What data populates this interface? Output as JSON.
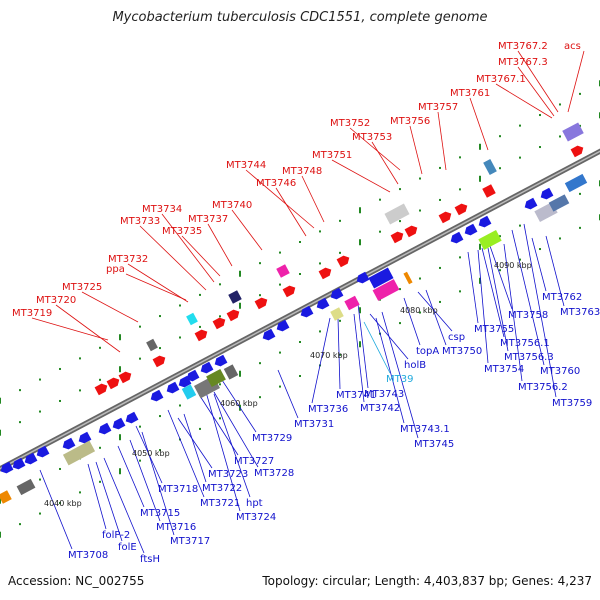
{
  "title": "Mycobacterium tuberculosis CDC1551, complete genome",
  "footer": {
    "accession": "Accession: NC_002755",
    "summary": "Topology: circular; Length: 4,403,837 bp; Genes: 4,237"
  },
  "colors": {
    "backbone": "#777777",
    "forward_label": "#dd1111",
    "reverse_label": "#1111cc",
    "highlight_label": "#22aadd",
    "forward_gene": "#ee1111",
    "reverse_gene": "#1a1ae0",
    "tick": "#228822"
  },
  "scale_labels": [
    "4040 kbp",
    "4050 kbp",
    "4060 kbp",
    "4070 kbp",
    "4080 kbp",
    "4090 kbp"
  ],
  "forward_genes": [
    "MT3719",
    "MT3720",
    "MT3725",
    "ppa",
    "MT3732",
    "MT3733",
    "MT3734",
    "MT3735",
    "MT3737",
    "MT3740",
    "MT3746",
    "MT3744",
    "MT3748",
    "MT3751",
    "MT3753",
    "MT3752",
    "MT3756",
    "MT3757",
    "MT3761",
    "MT3767.1",
    "MT3767.3",
    "MT3767.2",
    "acs"
  ],
  "reverse_genes": [
    "MT3708",
    "ftsH",
    "folE",
    "folP-2",
    "MT3717",
    "MT3716",
    "MT3715",
    "MT3718",
    "MT3721",
    "MT3722",
    "MT3723",
    "MT3724",
    "hpt",
    "MT3728",
    "MT3727",
    "MT3729",
    "MT3731",
    "MT3736",
    "MT3741",
    "MT3742",
    "MT3743",
    "MT39",
    "MT3743.1",
    "MT3745",
    "holB",
    "topA",
    "csp",
    "MT3750",
    "MT3755",
    "MT3754",
    "MT3756.1",
    "MT3756.3",
    "MT3758",
    "MT3756.2",
    "MT3760",
    "MT3759",
    "MT3762",
    "MT3763"
  ]
}
